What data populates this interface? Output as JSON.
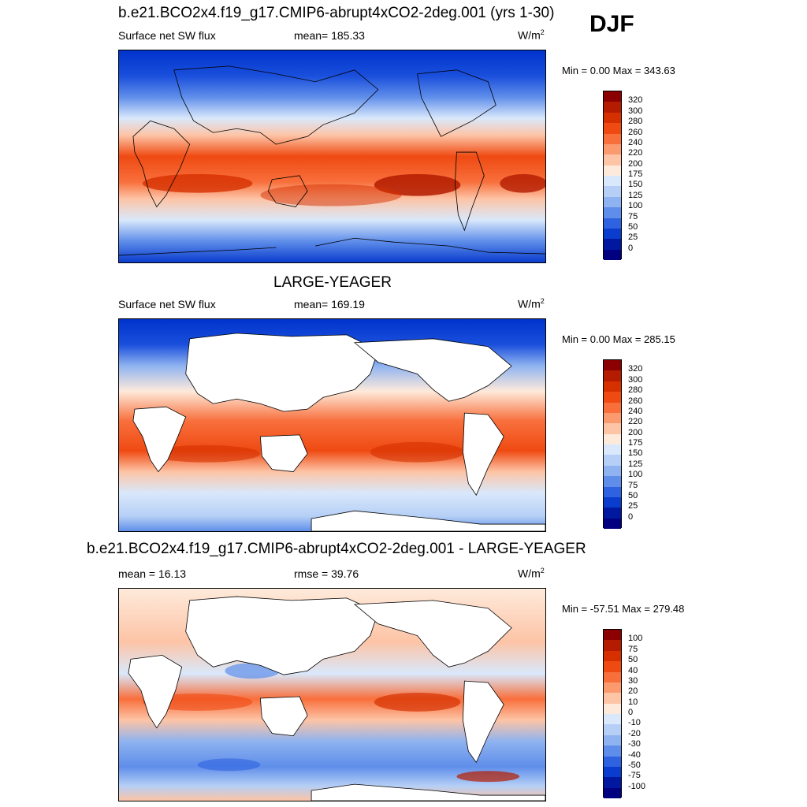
{
  "season": "DJF",
  "panel1": {
    "title": "b.e21.BCO2x4.f19_g17.CMIP6-abrupt4xCO2-2deg.001 (yrs 1-30)",
    "variable": "Surface net SW flux",
    "stat": "mean= 185.33",
    "units_base": "W/m",
    "units_exp": "2",
    "minmax": "Min =   0.00 Max = 343.63",
    "ticks": [
      "320",
      "300",
      "280",
      "260",
      "240",
      "220",
      "200",
      "175",
      "150",
      "125",
      "100",
      "75",
      "50",
      "25",
      "0"
    ]
  },
  "panel2": {
    "title": "LARGE-YEAGER",
    "variable": "Surface net SW flux",
    "stat": "mean= 169.19",
    "units_base": "W/m",
    "units_exp": "2",
    "minmax": "Min =   0.00 Max = 285.15",
    "ticks": [
      "320",
      "300",
      "280",
      "260",
      "240",
      "220",
      "200",
      "175",
      "150",
      "125",
      "100",
      "75",
      "50",
      "25",
      "0"
    ]
  },
  "panel3": {
    "title": "b.e21.BCO2x4.f19_g17.CMIP6-abrupt4xCO2-2deg.001 - LARGE-YEAGER",
    "stat_mean": "mean =  16.13",
    "stat_rmse": "rmse =  39.76",
    "units_base": "W/m",
    "units_exp": "2",
    "minmax": "Min = -57.51 Max = 279.48",
    "ticks": [
      "100",
      "75",
      "50",
      "40",
      "30",
      "20",
      "10",
      "0",
      "-10",
      "-20",
      "-30",
      "-40",
      "-50",
      "-75",
      "-100"
    ]
  },
  "colorbar_colors": [
    "#8b0000",
    "#b31c00",
    "#d63000",
    "#ef4a12",
    "#f86f3c",
    "#fb9a6e",
    "#fdc4a6",
    "#feeadb",
    "#d9e8fb",
    "#b5cff6",
    "#8fb3f0",
    "#5f8eea",
    "#2f62e0",
    "#0a3ccd",
    "#00189f",
    "#000080"
  ],
  "colors": {
    "land": "#ffffff",
    "coast": "#000000"
  }
}
